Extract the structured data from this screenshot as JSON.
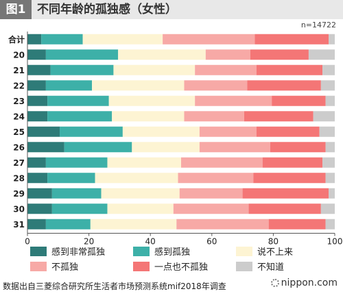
{
  "header": {
    "figure_label": "图1",
    "title": "不同年龄的孤独感（女性）",
    "sample": "n=14722"
  },
  "source": "数据出自三菱综合研究所生活者市场预测系统mif2018年调查",
  "brand": "nippon.com",
  "chart_data": {
    "type": "bar",
    "orientation": "horizontal",
    "stacked": true,
    "categories": [
      "合计",
      "20",
      "21",
      "22",
      "23",
      "24",
      "25",
      "26",
      "27",
      "28",
      "29",
      "30",
      "31"
    ],
    "x_ticks": [
      "0",
      "20",
      "40",
      "60",
      "80",
      "100"
    ],
    "x_unit": "(%)",
    "xlim": [
      0,
      100
    ],
    "grid": false,
    "legend_position": "bottom",
    "series": [
      {
        "name": "感到非常孤独",
        "color": "#2e7b78",
        "values": [
          4.5,
          6.0,
          7.5,
          6.0,
          6.5,
          6.5,
          10.5,
          12.0,
          6.0,
          6.5,
          8.0,
          8.0,
          6.0
        ]
      },
      {
        "name": "感到孤独",
        "color": "#3db0a8",
        "values": [
          13.5,
          23.5,
          20.5,
          15.0,
          20.0,
          21.0,
          20.5,
          22.0,
          20.0,
          15.5,
          16.0,
          18.0,
          14.5
        ]
      },
      {
        "name": "说不上来",
        "color": "#fdf4d3",
        "values": [
          26.0,
          28.5,
          26.5,
          30.0,
          28.0,
          23.5,
          25.0,
          22.0,
          24.0,
          27.0,
          25.5,
          21.5,
          28.0
        ]
      },
      {
        "name": "不孤独",
        "color": "#f7a9a6",
        "values": [
          30.0,
          14.5,
          20.0,
          20.5,
          25.0,
          19.5,
          18.5,
          23.0,
          26.5,
          24.5,
          20.5,
          24.5,
          30.0
        ]
      },
      {
        "name": "一点也不孤独",
        "color": "#f47676",
        "values": [
          24.0,
          19.0,
          21.5,
          24.0,
          17.5,
          22.5,
          20.5,
          18.0,
          19.5,
          23.5,
          28.0,
          23.5,
          18.5
        ]
      },
      {
        "name": "不知道",
        "color": "#cccccc",
        "values": [
          2.0,
          8.5,
          4.0,
          4.5,
          3.0,
          7.0,
          5.0,
          3.0,
          4.0,
          3.0,
          2.0,
          4.5,
          3.0
        ]
      }
    ]
  }
}
